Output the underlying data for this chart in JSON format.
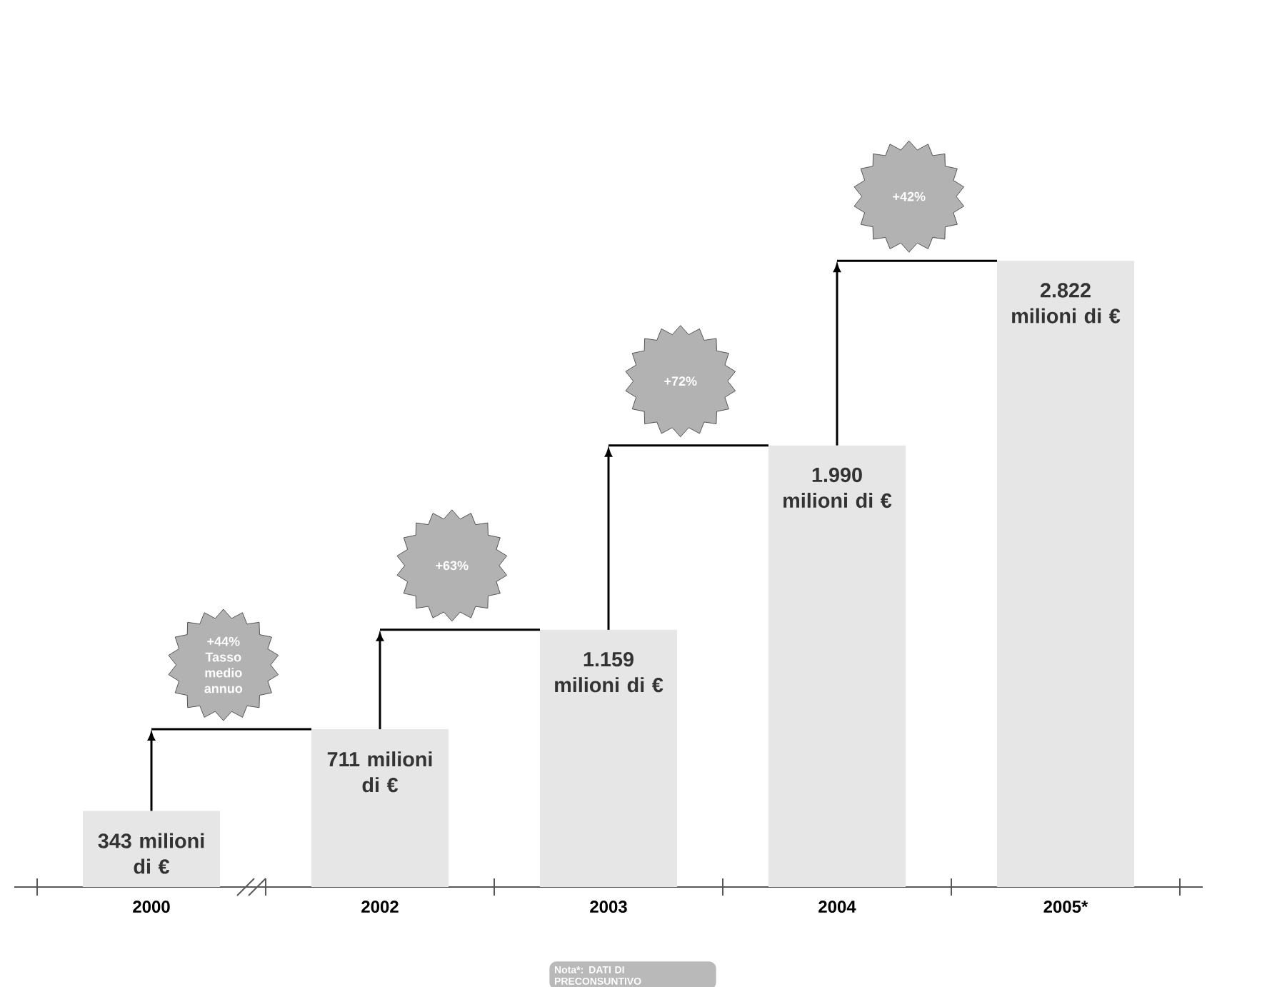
{
  "chart_data": {
    "type": "bar",
    "categories": [
      "2000",
      "2002",
      "2003",
      "2004",
      "2005*"
    ],
    "values": [
      343,
      711,
      1159,
      1990,
      2822
    ],
    "color": "#e6e6e6",
    "value_labels": [
      "343 milioni di €",
      "711 milioni di €",
      "1.159 milioni di €",
      "1.990 milioni di €",
      "2.822 milioni di €"
    ],
    "annotations": [
      "+44% Tasso medio annuo",
      "+63%",
      "+72%",
      "+42%",
      "Nota*: DATI DI PRECONSUNTIVO"
    ]
  }
}
